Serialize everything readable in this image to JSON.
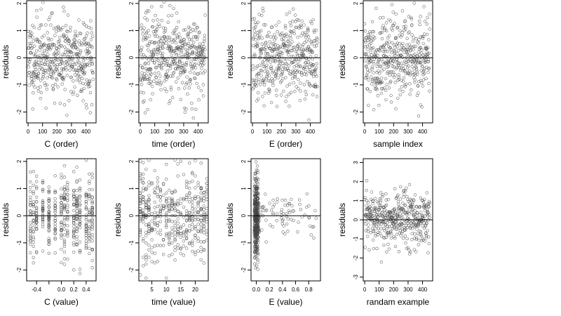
{
  "chart_data": [
    {
      "type": "scatter",
      "xlabel": "C (order)",
      "ylabel": "residuals",
      "xlim": [
        -10,
        470
      ],
      "ylim": [
        -2.4,
        2.1
      ],
      "xticks": [
        0,
        100,
        200,
        300,
        400
      ],
      "xtick_labels": [
        "0",
        "100",
        "200",
        "300",
        "400"
      ],
      "yticks": [
        -2,
        -1,
        0,
        1,
        2
      ],
      "ytick_labels": [
        "-2",
        "-1",
        "0",
        "1",
        "2"
      ],
      "reference_line": 0,
      "points": {
        "kind": "order",
        "n": 450,
        "seed": 11
      }
    },
    {
      "type": "scatter",
      "xlabel": "time (order)",
      "ylabel": "residuals",
      "xlim": [
        -10,
        470
      ],
      "ylim": [
        -2.4,
        2.1
      ],
      "xticks": [
        0,
        100,
        200,
        300,
        400
      ],
      "xtick_labels": [
        "0",
        "100",
        "200",
        "300",
        "400"
      ],
      "yticks": [
        -2,
        -1,
        0,
        1,
        2
      ],
      "ytick_labels": [
        "-2",
        "-1",
        "0",
        "1",
        "2"
      ],
      "reference_line": 0,
      "points": {
        "kind": "order",
        "n": 450,
        "seed": 23
      }
    },
    {
      "type": "scatter",
      "xlabel": "E (order)",
      "ylabel": "residuals",
      "xlim": [
        -10,
        470
      ],
      "ylim": [
        -2.4,
        2.1
      ],
      "xticks": [
        0,
        100,
        200,
        300,
        400
      ],
      "xtick_labels": [
        "0",
        "100",
        "200",
        "300",
        "400"
      ],
      "yticks": [
        -2,
        -1,
        0,
        1,
        2
      ],
      "ytick_labels": [
        "-2",
        "-1",
        "0",
        "1",
        "2"
      ],
      "reference_line": 0,
      "points": {
        "kind": "order",
        "n": 450,
        "seed": 37
      }
    },
    {
      "type": "scatter",
      "xlabel": "sample index",
      "ylabel": "residuals",
      "xlim": [
        -10,
        470
      ],
      "ylim": [
        -2.4,
        2.1
      ],
      "xticks": [
        0,
        100,
        200,
        300,
        400
      ],
      "xtick_labels": [
        "0",
        "100",
        "200",
        "300",
        "400"
      ],
      "yticks": [
        -2,
        -1,
        0,
        1,
        2
      ],
      "ytick_labels": [
        "-2",
        "-1",
        "0",
        "1",
        "2"
      ],
      "reference_line": 0,
      "points": {
        "kind": "order",
        "n": 450,
        "seed": 41
      }
    },
    {
      "type": "scatter",
      "xlabel": "C (value)",
      "ylabel": "residuals",
      "xlim": [
        -0.56,
        0.56
      ],
      "ylim": [
        -2.4,
        2.1
      ],
      "xticks": [
        -0.4,
        -0.2,
        0.0,
        0.2,
        0.4
      ],
      "xtick_labels": [
        "-0.4",
        "",
        "0.0",
        "0.2",
        "0.4"
      ],
      "yticks": [
        -2,
        -1,
        0,
        1,
        2
      ],
      "ytick_labels": [
        "-2",
        "-1",
        "0",
        "1",
        "2"
      ],
      "reference_line": 0,
      "points": {
        "kind": "columns",
        "n": 450,
        "seed": 53,
        "columns": [
          -0.5,
          -0.45,
          -0.4,
          -0.3,
          -0.2,
          -0.1,
          0.0,
          0.05,
          0.1,
          0.2,
          0.25,
          0.3,
          0.4,
          0.45,
          0.5
        ]
      }
    },
    {
      "type": "scatter",
      "xlabel": "time (value)",
      "ylabel": "residuals",
      "xlim": [
        0.5,
        24.5
      ],
      "ylim": [
        -2.4,
        2.1
      ],
      "xticks": [
        5,
        10,
        15,
        20
      ],
      "xtick_labels": [
        "5",
        "10",
        "15",
        "20"
      ],
      "yticks": [
        -2,
        -1,
        0,
        1,
        2
      ],
      "ytick_labels": [
        "-2",
        "-1",
        "0",
        "1",
        "2"
      ],
      "reference_line": 0,
      "points": {
        "kind": "columns",
        "n": 450,
        "seed": 67,
        "columns": [
          1,
          2,
          3,
          4,
          5,
          6,
          7,
          8,
          9,
          10,
          11,
          12,
          13,
          14,
          15,
          16,
          17,
          18,
          19,
          20,
          21,
          22,
          23,
          24
        ]
      }
    },
    {
      "type": "scatter",
      "xlabel": "E (value)",
      "ylabel": "residuals",
      "xlim": [
        -0.08,
        0.98
      ],
      "ylim": [
        -2.4,
        2.1
      ],
      "xticks": [
        0.0,
        0.2,
        0.4,
        0.6,
        0.8
      ],
      "xtick_labels": [
        "0.0",
        "0.2",
        "0.4",
        "0.6",
        "0.8"
      ],
      "yticks": [
        -2,
        -1,
        0,
        1,
        2
      ],
      "ytick_labels": [
        "-2",
        "-1",
        "0",
        "1",
        "2"
      ],
      "reference_line": 0,
      "points": {
        "kind": "skewed",
        "n": 450,
        "seed": 79
      }
    },
    {
      "type": "scatter",
      "xlabel": "randam example",
      "ylabel": "residuals",
      "xlim": [
        -10,
        470
      ],
      "ylim": [
        -3.2,
        3.2
      ],
      "xticks": [
        0,
        100,
        200,
        300,
        400
      ],
      "xtick_labels": [
        "0",
        "100",
        "200",
        "300",
        "400"
      ],
      "yticks": [
        -3,
        -2,
        -1,
        0,
        1,
        2,
        3
      ],
      "ytick_labels": [
        "-3",
        "-2",
        "-1",
        "0",
        "1",
        "2",
        "3"
      ],
      "reference_line": 0,
      "points": {
        "kind": "order",
        "n": 450,
        "seed": 97
      }
    }
  ]
}
